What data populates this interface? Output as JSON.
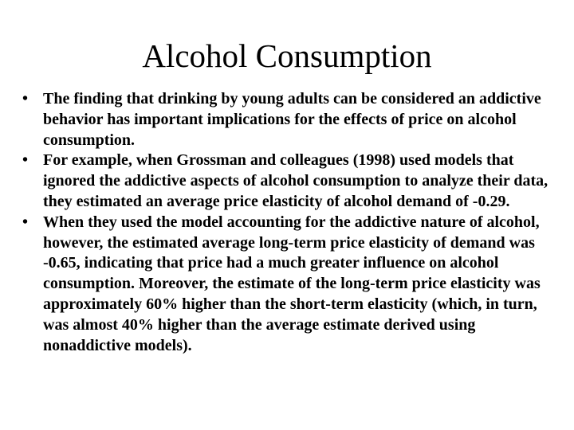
{
  "slide": {
    "title": "Alcohol Consumption",
    "bullets": [
      "The finding that drinking by young adults can be considered an addictive behavior has important implications for the effects of price on alcohol consumption.",
      "For example, when Grossman and colleagues (1998) used models that ignored the addictive aspects of alcohol consumption to analyze their data, they estimated an average price elasticity of alcohol demand of -0.29.",
      "When they used the model accounting for the addictive nature of alcohol, however, the estimated average long-term price elasticity of demand was -0.65, indicating that price had a much greater influence on alcohol consumption. Moreover, the estimate of the long-term price elasticity was approximately 60% higher than the short-term elasticity (which, in turn, was almost 40% higher than the average estimate derived using nonaddictive models)."
    ]
  }
}
